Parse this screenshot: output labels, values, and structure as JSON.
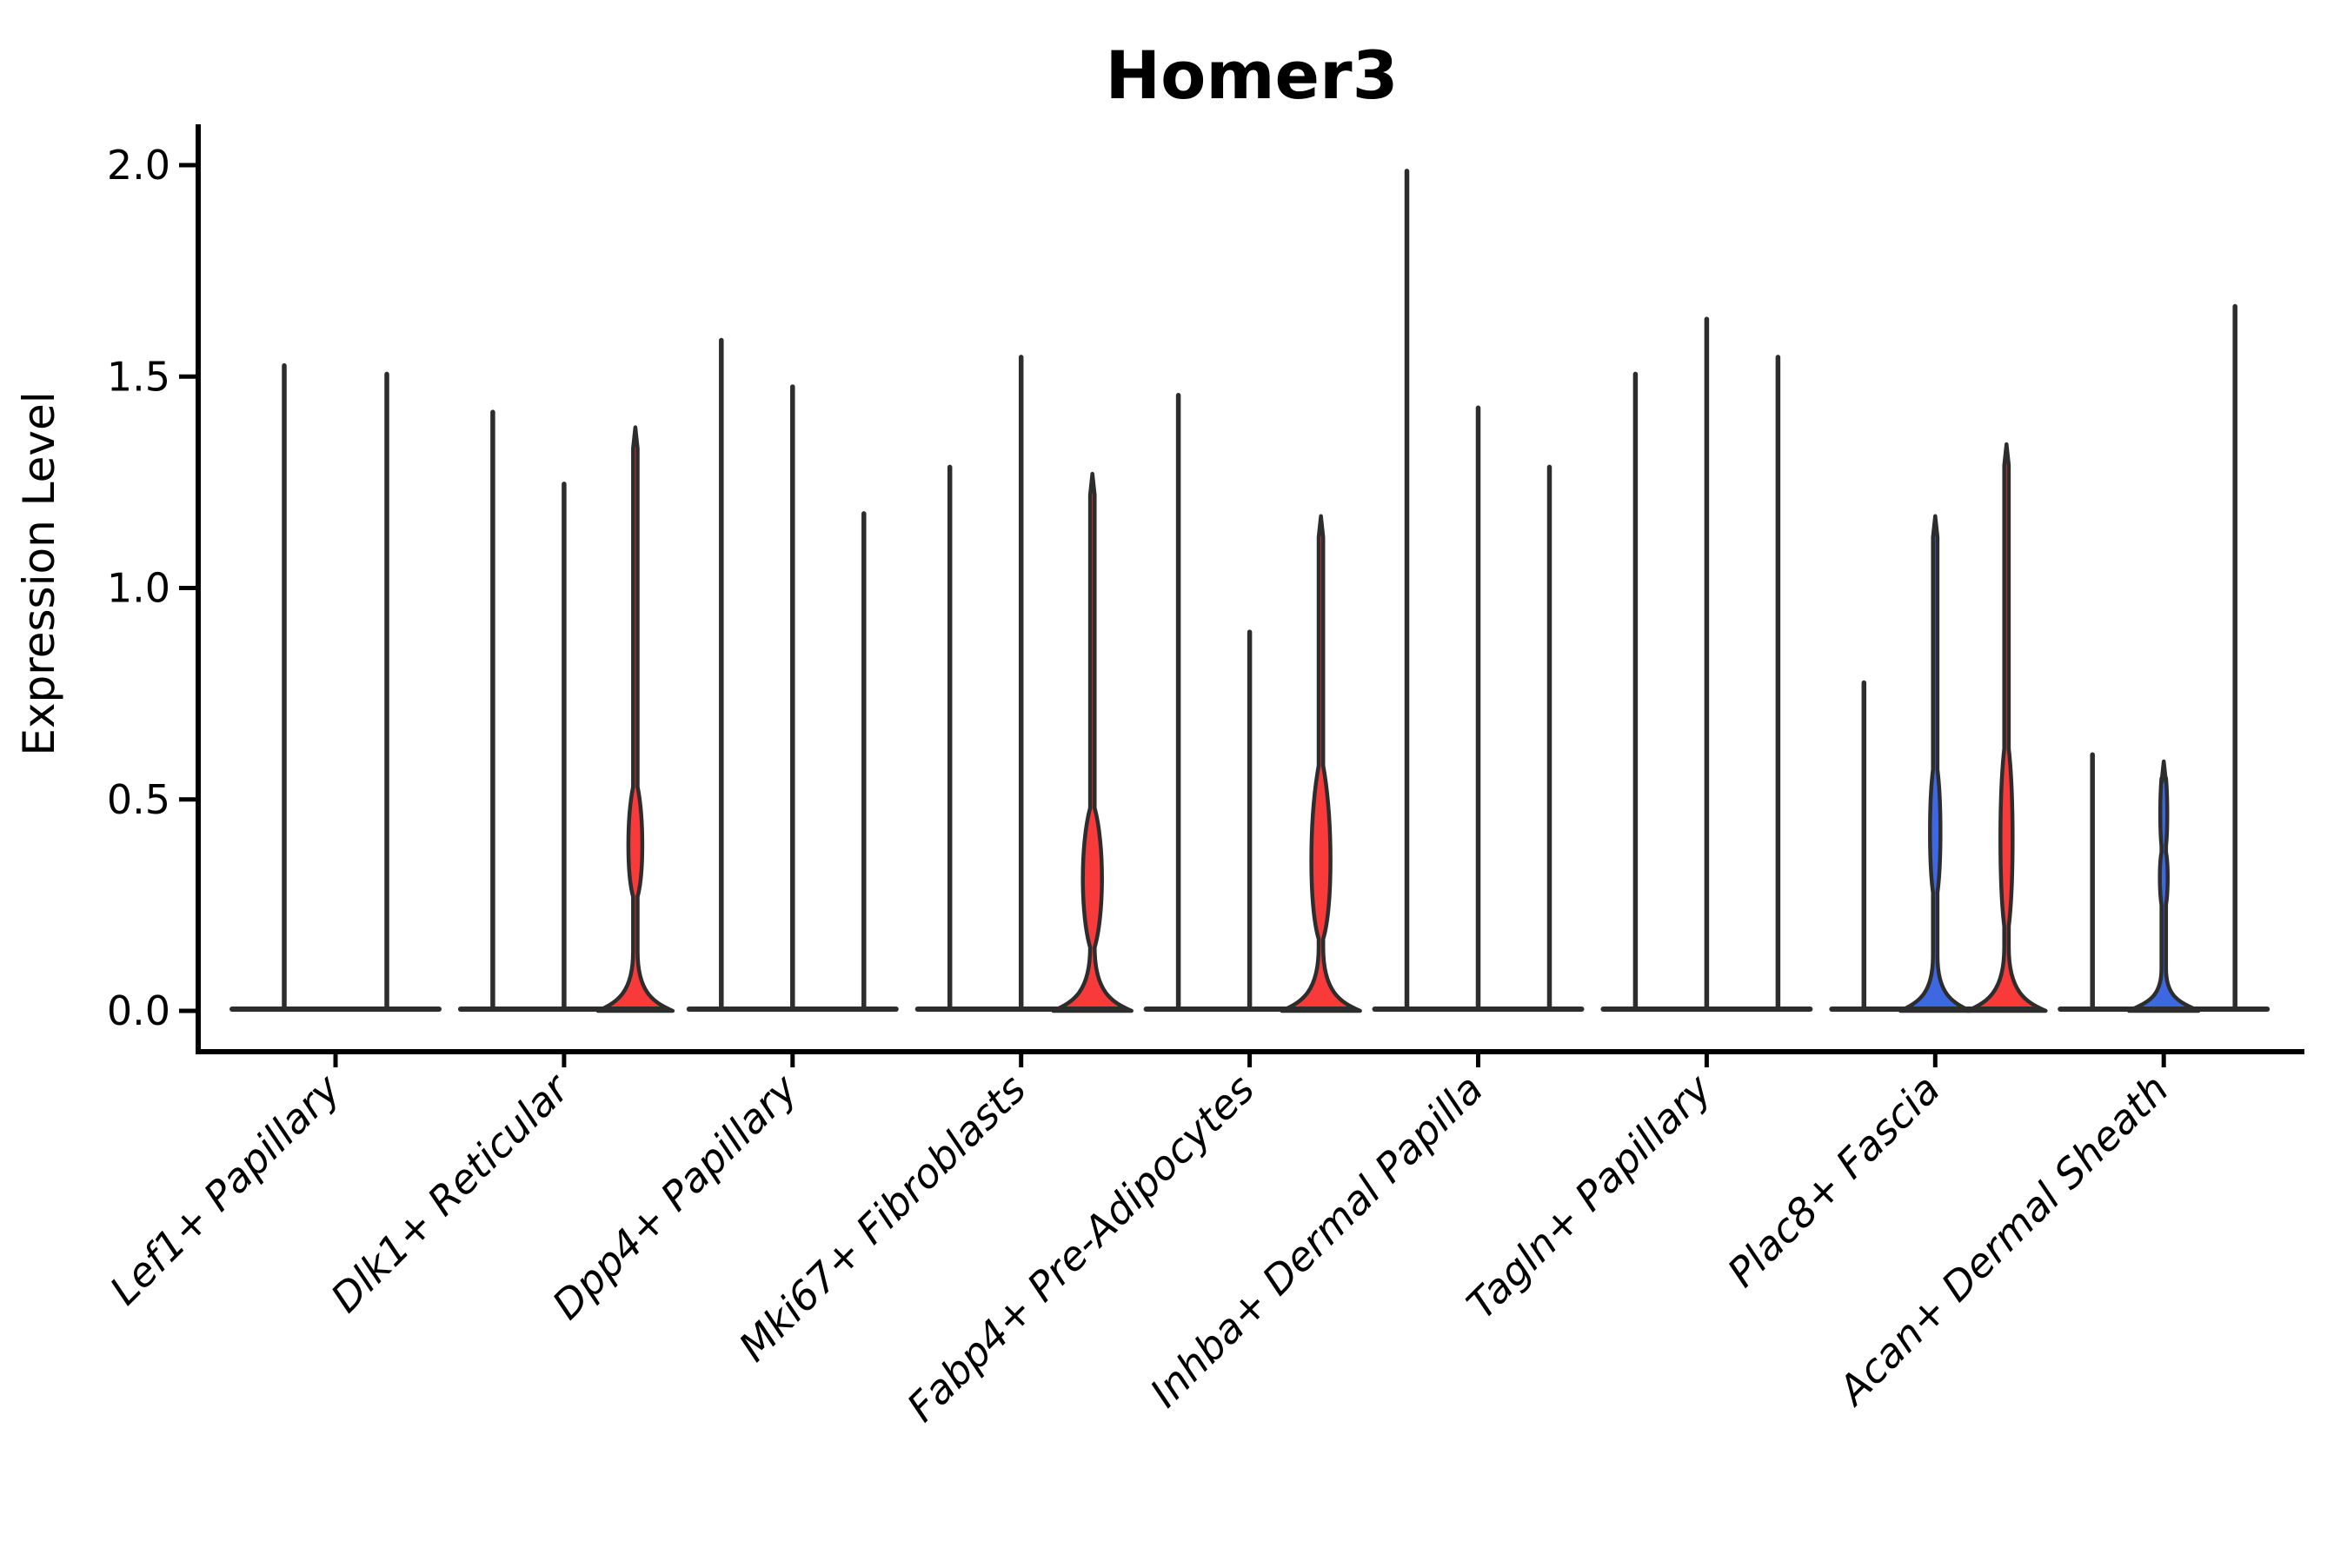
{
  "chart_data": {
    "type": "violin",
    "title": "Homer3",
    "ylabel": "Expression Level",
    "xlabel": "",
    "ylim": [
      0.0,
      2.1
    ],
    "ytick_values": [
      0.0,
      0.5,
      1.0,
      1.5,
      2.0
    ],
    "ytick_labels": [
      "0.0",
      "0.5",
      "1.0",
      "1.5",
      "2.0"
    ],
    "grid": false,
    "legend": "none",
    "x_tick_rotation_deg": 45,
    "colors": {
      "red": "#f93a3a",
      "blue": "#3e68e2",
      "edge": "#2d2d2d",
      "axis": "#000000",
      "background": "#ffffff"
    },
    "categories": [
      "Lef1+ Papillary",
      "Dlk1+ Reticular",
      "Dpp4+ Papillary",
      "Mki67+ Fibroblasts",
      "Fabp4+ Pre-Adipocytes",
      "Inhba+ Dermal Papilla",
      "Tagln+ Papillary",
      "Plac8+ Fascia",
      "Acan+ Dermal Sheath"
    ],
    "groups": [
      {
        "category": "Lef1+ Papillary",
        "violins": [
          {
            "offset": -59,
            "max_expression": 1.53,
            "fill": "none"
          },
          {
            "offset": 59,
            "max_expression": 1.51,
            "fill": "none"
          }
        ]
      },
      {
        "category": "Dlk1+ Reticular",
        "violins": [
          {
            "offset": -82,
            "max_expression": 1.42,
            "fill": "none"
          },
          {
            "offset": 0,
            "max_expression": 1.25,
            "fill": "none"
          },
          {
            "offset": 82,
            "max_expression": 1.38,
            "fill": "red",
            "body": {
              "bulges": [
                {
                  "center": 0.38,
                  "top": 0.53,
                  "bottom": 0.27,
                  "half_width": 8
                }
              ],
              "flare_start": 0.14,
              "base_half_width": 43
            }
          }
        ]
      },
      {
        "category": "Dpp4+ Papillary",
        "violins": [
          {
            "offset": -82,
            "max_expression": 1.59,
            "fill": "none"
          },
          {
            "offset": 0,
            "max_expression": 1.48,
            "fill": "none"
          },
          {
            "offset": 82,
            "max_expression": 1.18,
            "fill": "none"
          }
        ]
      },
      {
        "category": "Mki67+ Fibroblasts",
        "violins": [
          {
            "offset": -82,
            "max_expression": 1.29,
            "fill": "none"
          },
          {
            "offset": 0,
            "max_expression": 1.55,
            "fill": "none"
          },
          {
            "offset": 82,
            "max_expression": 1.27,
            "fill": "red",
            "body": {
              "bulges": [
                {
                  "center": 0.31,
                  "top": 0.48,
                  "bottom": 0.15,
                  "half_width": 11
                }
              ],
              "flare_start": 0.15,
              "base_half_width": 45
            }
          }
        ]
      },
      {
        "category": "Fabp4+ Pre-Adipocytes",
        "violins": [
          {
            "offset": -82,
            "max_expression": 1.46,
            "fill": "none"
          },
          {
            "offset": 0,
            "max_expression": 0.9,
            "fill": "none"
          },
          {
            "offset": 82,
            "max_expression": 1.17,
            "fill": "red",
            "body": {
              "bulges": [
                {
                  "center": 0.32,
                  "top": 0.58,
                  "bottom": 0.17,
                  "half_width": 11
                }
              ],
              "flare_start": 0.15,
              "base_half_width": 45
            }
          }
        ]
      },
      {
        "category": "Inhba+ Dermal Papilla",
        "violins": [
          {
            "offset": -82,
            "max_expression": 1.99,
            "fill": "none"
          },
          {
            "offset": 0,
            "max_expression": 1.43,
            "fill": "none"
          },
          {
            "offset": 82,
            "max_expression": 1.29,
            "fill": "none"
          }
        ]
      },
      {
        "category": "Tagln+ Papillary",
        "violins": [
          {
            "offset": -82,
            "max_expression": 1.51,
            "fill": "none"
          },
          {
            "offset": 0,
            "max_expression": 1.64,
            "fill": "none"
          },
          {
            "offset": 82,
            "max_expression": 1.55,
            "fill": "none"
          }
        ]
      },
      {
        "category": "Plac8+ Fascia",
        "violins": [
          {
            "offset": -82,
            "max_expression": 0.78,
            "fill": "none"
          },
          {
            "offset": 0,
            "max_expression": 1.17,
            "fill": "blue",
            "body": {
              "bulges": [
                {
                  "center": 0.42,
                  "top": 0.57,
                  "bottom": 0.28,
                  "half_width": 6
                }
              ],
              "flare_start": 0.13,
              "base_half_width": 40
            }
          },
          {
            "offset": 82,
            "max_expression": 1.34,
            "fill": "red",
            "body": {
              "bulges": [
                {
                  "center": 0.4,
                  "top": 0.62,
                  "bottom": 0.2,
                  "half_width": 7
                }
              ],
              "flare_start": 0.15,
              "base_half_width": 45
            }
          }
        ]
      },
      {
        "category": "Acan+ Dermal Sheath",
        "violins": [
          {
            "offset": -82,
            "max_expression": 0.61,
            "fill": "none"
          },
          {
            "offset": 0,
            "max_expression": 0.59,
            "fill": "blue",
            "body": {
              "bulges": [
                {
                  "center": 0.46,
                  "top": 0.55,
                  "bottom": 0.39,
                  "half_width": 4
                },
                {
                  "center": 0.32,
                  "top": 0.375,
                  "bottom": 0.25,
                  "half_width": 4.5
                }
              ],
              "flare_start": 0.1,
              "base_half_width": 40
            }
          },
          {
            "offset": 82,
            "max_expression": 1.67,
            "fill": "none"
          }
        ]
      }
    ]
  }
}
